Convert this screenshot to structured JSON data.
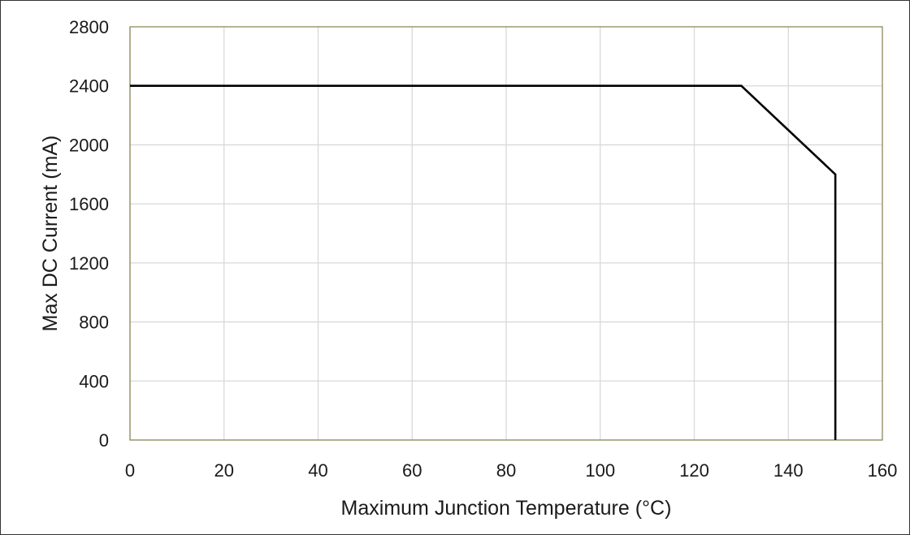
{
  "chart_data": {
    "type": "line",
    "title": "",
    "xlabel": "Maximum Junction Temperature (°C)",
    "ylabel": "Max DC Current (mA)",
    "xlim": [
      0,
      160
    ],
    "ylim": [
      0,
      2800
    ],
    "x_ticks": [
      0,
      20,
      40,
      60,
      80,
      100,
      120,
      140,
      160
    ],
    "y_ticks": [
      0,
      400,
      800,
      1200,
      1600,
      2000,
      2400,
      2800
    ],
    "x_tick_labels": [
      "0",
      "20",
      "40",
      "60",
      "80",
      "100",
      "120",
      "140",
      "160"
    ],
    "y_tick_labels": [
      "0",
      "400",
      "800",
      "1200",
      "1600",
      "2000",
      "2400",
      "2800"
    ],
    "grid": true,
    "legend": "none",
    "colors": {
      "line": "#000000",
      "grid": "#d9d9d9",
      "plot_border": "#8c8a5a"
    },
    "series": [
      {
        "x": [
          0,
          130,
          150,
          150
        ],
        "y": [
          2400,
          2400,
          1800,
          0
        ]
      }
    ]
  }
}
